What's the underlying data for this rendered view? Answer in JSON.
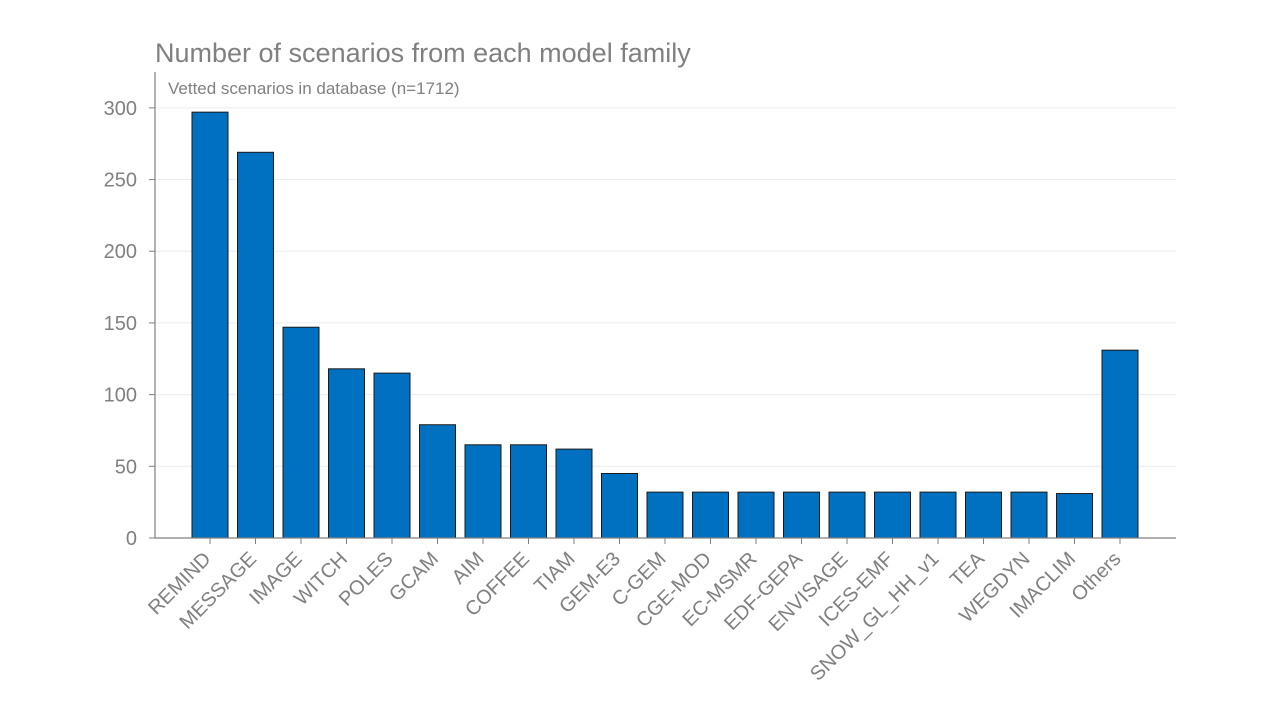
{
  "chart_data": {
    "type": "bar",
    "title": "Number of scenarios from each model family",
    "subtitle": "Vetted scenarios in database (n=1712)",
    "xlabel": "",
    "ylabel": "",
    "ylim": [
      0,
      325
    ],
    "yticks": [
      0,
      50,
      100,
      150,
      200,
      250,
      300
    ],
    "grid": true,
    "bar_color": "#0070C0",
    "categories": [
      "REMIND",
      "MESSAGE",
      "IMAGE",
      "WITCH",
      "POLES",
      "GCAM",
      "AIM",
      "COFFEE",
      "TIAM",
      "GEM-E3",
      "C-GEM",
      "CGE-MOD",
      "EC-MSMR",
      "EDF-GEPA",
      "ENVISAGE",
      "ICES-EMF",
      "SNOW_GL_HH_v1",
      "TEA",
      "WEGDYN",
      "IMACLIM",
      "Others"
    ],
    "values": [
      297,
      269,
      147,
      118,
      115,
      79,
      65,
      65,
      62,
      45,
      32,
      32,
      32,
      32,
      32,
      32,
      32,
      32,
      32,
      31,
      131
    ]
  }
}
